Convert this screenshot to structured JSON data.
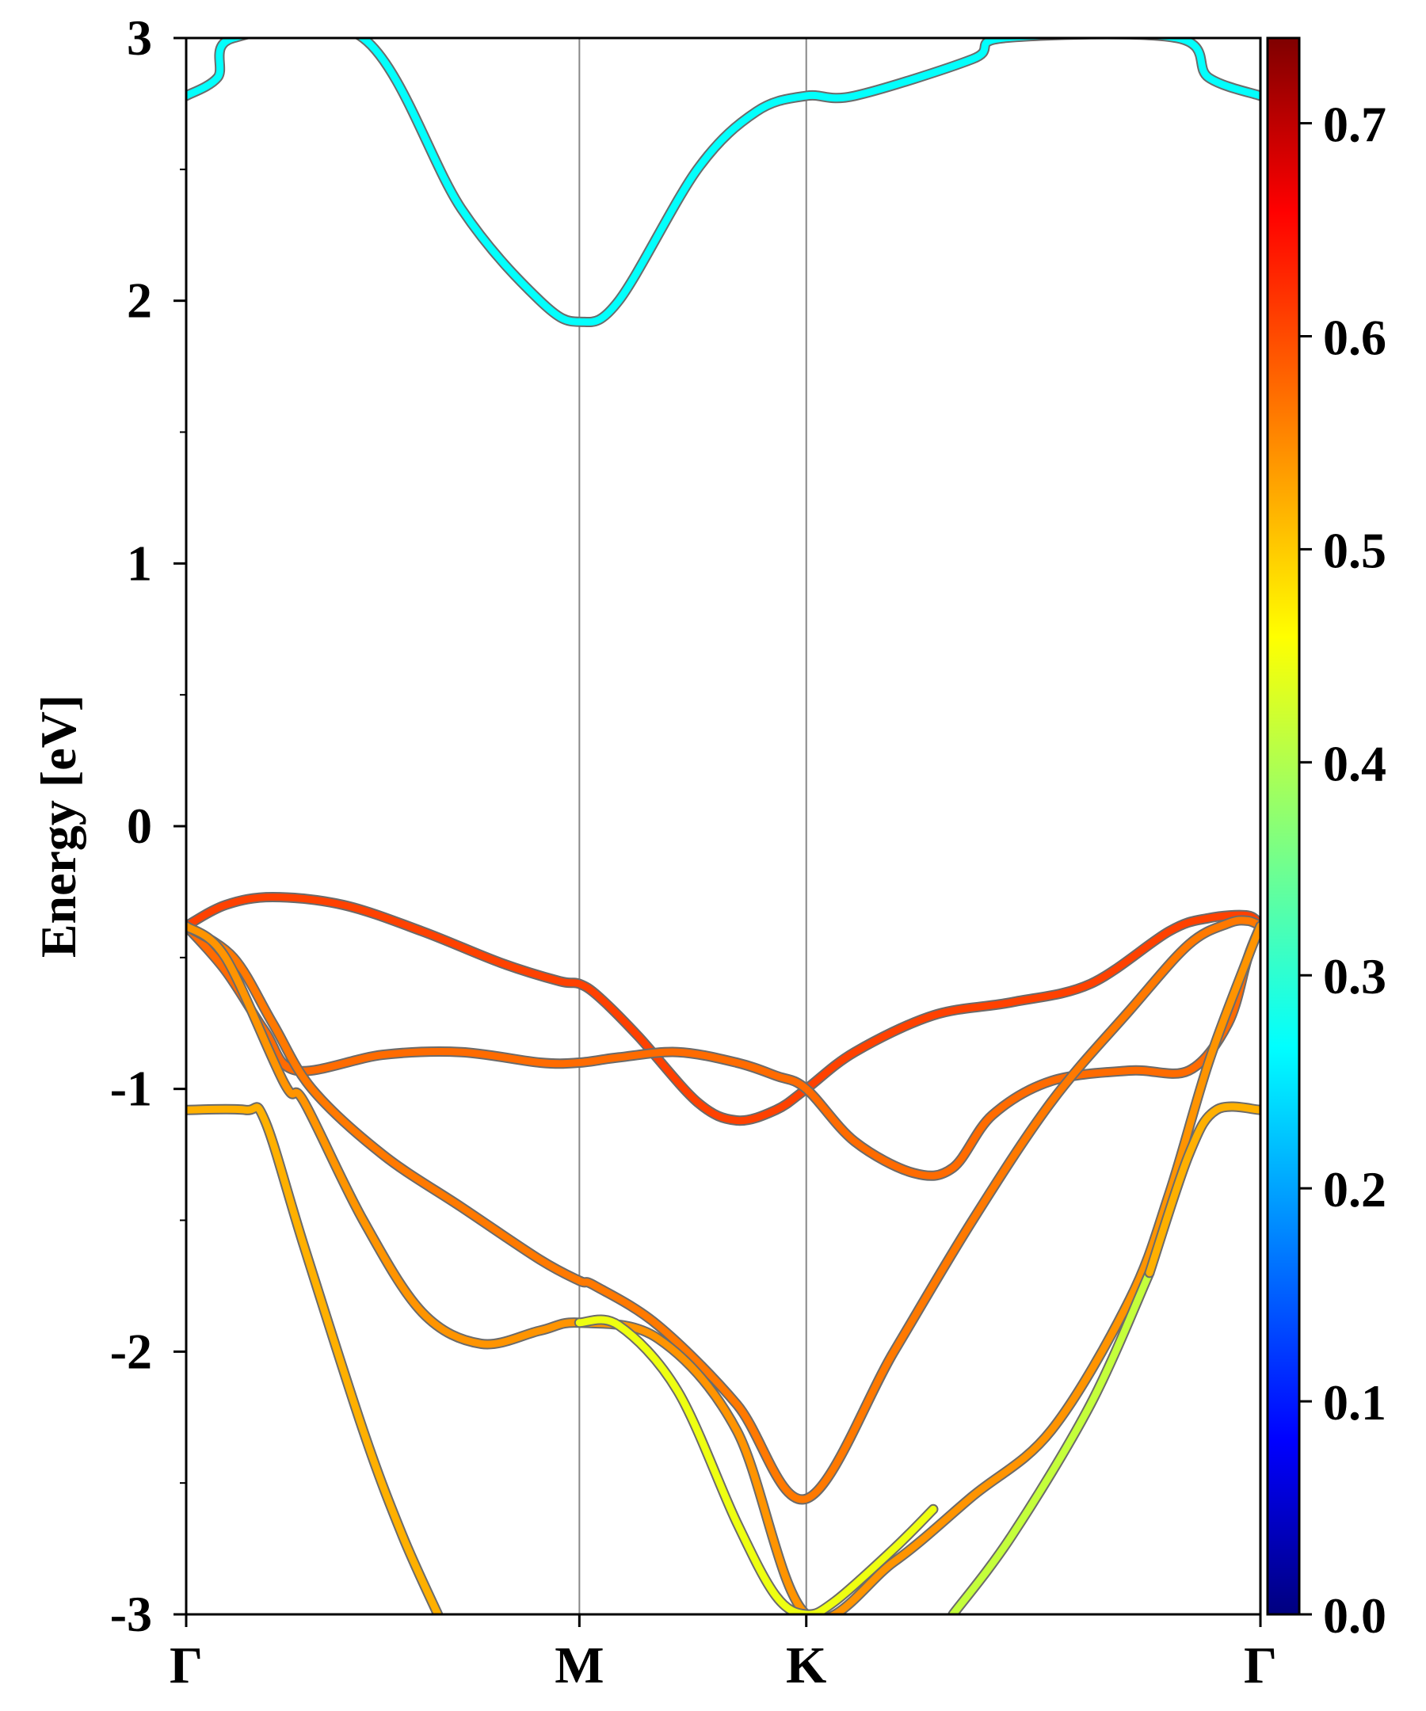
{
  "chart_data": {
    "type": "line",
    "title": "",
    "xlabel": "",
    "ylabel": "Energy [eV]",
    "ylim": [
      -3,
      3
    ],
    "yticks": [
      "3",
      "2",
      "1",
      "0",
      "-1",
      "-2",
      "-3"
    ],
    "ytick_values": [
      3,
      2,
      1,
      0,
      -1,
      -2,
      -3
    ],
    "grid": false,
    "k_points": [
      {
        "label": "Γ",
        "k": 0.0
      },
      {
        "label": "M",
        "k": 1.0
      },
      {
        "label": "K",
        "k": 1.577
      },
      {
        "label": "Γ",
        "k": 2.732
      }
    ],
    "colorbar": {
      "colormap": "jet",
      "range": [
        0.0,
        0.74
      ],
      "tick_values": [
        0.0,
        0.1,
        0.2,
        0.3,
        0.4,
        0.5,
        0.6,
        0.7
      ],
      "tick_labels": [
        "0.0",
        "0.1",
        "0.2",
        "0.3",
        "0.4",
        "0.5",
        "0.6",
        "0.7"
      ]
    },
    "series": [
      {
        "name": "band-conduction",
        "weight": 0.28,
        "k": [
          0.0,
          0.08,
          0.12,
          0.45,
          0.7,
          0.9,
          1.0,
          1.1,
          1.3,
          1.45,
          1.577,
          1.7,
          2.0,
          2.08,
          2.52,
          2.6,
          2.732
        ],
        "e": [
          2.78,
          2.85,
          3.0,
          3.0,
          2.35,
          2.0,
          1.92,
          2.0,
          2.5,
          2.72,
          2.78,
          2.78,
          2.92,
          3.0,
          3.0,
          2.85,
          2.78
        ]
      },
      {
        "name": "band-1",
        "weight": 0.6,
        "k": [
          0.0,
          0.1,
          0.22,
          0.4,
          0.6,
          0.8,
          0.95,
          1.0,
          1.05,
          1.15,
          1.3,
          1.4,
          1.5,
          1.577,
          1.7,
          1.9,
          2.1,
          2.3,
          2.5,
          2.6,
          2.7,
          2.732
        ],
        "e": [
          -0.38,
          -0.3,
          -0.27,
          -0.3,
          -0.4,
          -0.52,
          -0.59,
          -0.6,
          -0.65,
          -0.8,
          -1.05,
          -1.12,
          -1.08,
          -1.0,
          -0.86,
          -0.72,
          -0.67,
          -0.6,
          -0.4,
          -0.35,
          -0.34,
          -0.38
        ]
      },
      {
        "name": "band-2",
        "weight": 0.57,
        "k": [
          0.0,
          0.1,
          0.2,
          0.28,
          0.5,
          0.7,
          0.9,
          1.0,
          1.1,
          1.25,
          1.4,
          1.5,
          1.577,
          1.7,
          1.85,
          1.95,
          2.05,
          2.2,
          2.4,
          2.55,
          2.65,
          2.7,
          2.732
        ],
        "e": [
          -0.38,
          -0.55,
          -0.78,
          -0.93,
          -0.87,
          -0.86,
          -0.9,
          -0.9,
          -0.88,
          -0.86,
          -0.9,
          -0.95,
          -1.0,
          -1.2,
          -1.32,
          -1.3,
          -1.1,
          -0.97,
          -0.93,
          -0.93,
          -0.75,
          -0.5,
          -0.38
        ]
      },
      {
        "name": "band-3",
        "weight": 0.56,
        "k": [
          0.0,
          0.12,
          0.22,
          0.32,
          0.5,
          0.7,
          0.9,
          1.0,
          1.04,
          1.2,
          1.4,
          1.577,
          1.8,
          2.0,
          2.2,
          2.4,
          2.55,
          2.65,
          2.7,
          2.732
        ],
        "e": [
          -0.38,
          -0.5,
          -0.75,
          -1.0,
          -1.25,
          -1.45,
          -1.65,
          -1.73,
          -1.75,
          -1.9,
          -2.2,
          -2.56,
          -2.0,
          -1.5,
          -1.05,
          -0.7,
          -0.45,
          -0.37,
          -0.36,
          -0.38
        ]
      },
      {
        "name": "band-4",
        "weight": 0.54,
        "k": [
          0.0,
          0.1,
          0.25,
          0.3,
          0.45,
          0.6,
          0.75,
          0.9,
          1.0,
          1.2,
          1.4,
          1.577,
          1.8,
          2.0,
          2.2,
          2.4,
          2.5,
          2.6,
          2.7,
          2.732
        ],
        "e": [
          -0.38,
          -0.5,
          -0.98,
          -1.05,
          -1.5,
          -1.85,
          -1.97,
          -1.92,
          -1.89,
          -1.95,
          -2.3,
          -3.0,
          -2.8,
          -2.55,
          -2.3,
          -1.8,
          -1.4,
          -0.9,
          -0.5,
          -0.38
        ]
      },
      {
        "name": "band-5",
        "weight": 0.52,
        "k": [
          0.0,
          0.15,
          0.2,
          0.3,
          0.45,
          0.55,
          0.64
        ],
        "e": [
          -1.08,
          -1.08,
          -1.12,
          -1.6,
          -2.3,
          -2.7,
          -3.0
        ]
      },
      {
        "name": "band-6",
        "weight": 0.45,
        "k": [
          1.0,
          1.1,
          1.25,
          1.4,
          1.5,
          1.577,
          1.65,
          1.8,
          1.9
        ],
        "e": [
          -1.89,
          -1.9,
          -2.15,
          -2.65,
          -2.93,
          -3.0,
          -2.95,
          -2.75,
          -2.6
        ]
      },
      {
        "name": "band-7",
        "weight": 0.42,
        "k": [
          1.95,
          2.1,
          2.3,
          2.45
        ],
        "e": [
          -3.0,
          -2.7,
          -2.2,
          -1.7
        ]
      },
      {
        "name": "band-8",
        "weight": 0.52,
        "k": [
          2.45,
          2.55,
          2.62,
          2.732
        ],
        "e": [
          -1.7,
          -1.25,
          -1.08,
          -1.08
        ]
      }
    ]
  }
}
